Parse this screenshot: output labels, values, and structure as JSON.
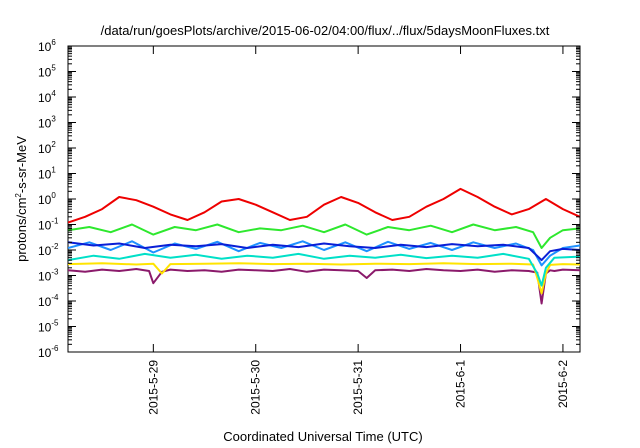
{
  "chart_data": {
    "type": "line",
    "title": "/data/run/goesPlots/archive/2015-06-02/04:00/flux/../flux/5daysMoonFluxes.txt",
    "xlabel": "Coordinated Universal Time (UTC)",
    "ylabel": {
      "before": "protons/cm",
      "sup": "2",
      "after": "-s-sr-MeV"
    },
    "y_scale": "log",
    "ylim": [
      1e-06,
      1000000.0
    ],
    "y_ticks": [
      {
        "value": 1e-06,
        "base": "10",
        "exp": "-6"
      },
      {
        "value": 1e-05,
        "base": "10",
        "exp": "-5"
      },
      {
        "value": 0.0001,
        "base": "10",
        "exp": "-4"
      },
      {
        "value": 0.001,
        "base": "10",
        "exp": "-3"
      },
      {
        "value": 0.01,
        "base": "10",
        "exp": "-2"
      },
      {
        "value": 0.1,
        "base": "10",
        "exp": "-1"
      },
      {
        "value": 1,
        "base": "10",
        "exp": "0"
      },
      {
        "value": 10,
        "base": "10",
        "exp": "1"
      },
      {
        "value": 100,
        "base": "10",
        "exp": "2"
      },
      {
        "value": 1000,
        "base": "10",
        "exp": "3"
      },
      {
        "value": 10000,
        "base": "10",
        "exp": "4"
      },
      {
        "value": 100000,
        "base": "10",
        "exp": "5"
      },
      {
        "value": 1000000,
        "base": "10",
        "exp": "6"
      }
    ],
    "xlim": [
      "2015-05-28T04:00",
      "2015-06-02T04:00"
    ],
    "x_ticks": [
      {
        "value": "2015-05-29T00:00",
        "label": "2015-5-29"
      },
      {
        "value": "2015-05-30T00:00",
        "label": "2015-5-30"
      },
      {
        "value": "2015-05-31T00:00",
        "label": "2015-5-31"
      },
      {
        "value": "2015-06-01T00:00",
        "label": "2015-6-1"
      },
      {
        "value": "2015-06-02T00:00",
        "label": "2015-6-2"
      }
    ],
    "grid": false,
    "legend": "none",
    "series": [
      {
        "color": "#8b1a6b",
        "x": [
          "2015-05-28T04:00",
          "2015-05-28T08:00",
          "2015-05-28T12:00",
          "2015-05-28T16:00",
          "2015-05-28T20:00",
          "2015-05-28T23:00",
          "2015-05-29T00:00",
          "2015-05-29T02:00",
          "2015-05-29T04:00",
          "2015-05-29T08:00",
          "2015-05-29T12:00",
          "2015-05-29T16:00",
          "2015-05-29T20:00",
          "2015-05-30T00:00",
          "2015-05-30T04:00",
          "2015-05-30T08:00",
          "2015-05-30T12:00",
          "2015-05-30T16:00",
          "2015-05-30T20:00",
          "2015-05-31T00:00",
          "2015-05-31T02:00",
          "2015-05-31T04:00",
          "2015-05-31T08:00",
          "2015-05-31T12:00",
          "2015-05-31T16:00",
          "2015-05-31T20:00",
          "2015-06-01T00:00",
          "2015-06-01T04:00",
          "2015-06-01T08:00",
          "2015-06-01T12:00",
          "2015-06-01T16:00",
          "2015-06-01T18:00",
          "2015-06-01T19:00",
          "2015-06-01T20:00",
          "2015-06-01T21:00",
          "2015-06-01T22:00",
          "2015-06-02T00:00",
          "2015-06-02T04:00"
        ],
        "y": [
          0.0016,
          0.0014,
          0.0017,
          0.0015,
          0.0018,
          0.0015,
          0.0005,
          0.0014,
          0.0017,
          0.0015,
          0.0016,
          0.0014,
          0.0017,
          0.0016,
          0.0015,
          0.0018,
          0.0014,
          0.0017,
          0.0016,
          0.0015,
          0.0008,
          0.0016,
          0.0017,
          0.0015,
          0.0018,
          0.0016,
          0.0015,
          0.0017,
          0.0014,
          0.0016,
          0.0015,
          0.0013,
          8e-05,
          0.0012,
          0.0016,
          0.0015,
          0.0017,
          0.0016
        ]
      },
      {
        "color": "#ffe400",
        "x": [
          "2015-05-28T04:00",
          "2015-05-28T12:00",
          "2015-05-28T20:00",
          "2015-05-29T00:00",
          "2015-05-29T02:00",
          "2015-05-29T04:00",
          "2015-05-29T12:00",
          "2015-05-29T20:00",
          "2015-05-30T04:00",
          "2015-05-30T12:00",
          "2015-05-30T20:00",
          "2015-05-31T04:00",
          "2015-05-31T12:00",
          "2015-05-31T20:00",
          "2015-06-01T04:00",
          "2015-06-01T12:00",
          "2015-06-01T17:00",
          "2015-06-01T18:00",
          "2015-06-01T19:00",
          "2015-06-01T20:00",
          "2015-06-01T21:00",
          "2015-06-02T00:00",
          "2015-06-02T04:00"
        ],
        "y": [
          0.0028,
          0.003,
          0.0027,
          0.0029,
          0.0012,
          0.0028,
          0.0029,
          0.003,
          0.0028,
          0.0029,
          0.0027,
          0.0029,
          0.0028,
          0.003,
          0.0028,
          0.0029,
          0.0027,
          0.0008,
          0.0002,
          0.0012,
          0.0026,
          0.0028,
          0.0027
        ]
      },
      {
        "color": "#00e0c8",
        "x": [
          "2015-05-28T04:00",
          "2015-05-28T10:00",
          "2015-05-28T16:00",
          "2015-05-28T22:00",
          "2015-05-29T04:00",
          "2015-05-29T10:00",
          "2015-05-29T16:00",
          "2015-05-29T22:00",
          "2015-05-30T04:00",
          "2015-05-30T10:00",
          "2015-05-30T16:00",
          "2015-05-30T22:00",
          "2015-05-31T04:00",
          "2015-05-31T10:00",
          "2015-05-31T16:00",
          "2015-05-31T22:00",
          "2015-06-01T04:00",
          "2015-06-01T10:00",
          "2015-06-01T16:00",
          "2015-06-01T18:00",
          "2015-06-01T19:00",
          "2015-06-01T20:00",
          "2015-06-01T22:00",
          "2015-06-02T04:00"
        ],
        "y": [
          0.004,
          0.006,
          0.0045,
          0.007,
          0.005,
          0.0065,
          0.0045,
          0.006,
          0.005,
          0.007,
          0.0045,
          0.006,
          0.005,
          0.0065,
          0.0048,
          0.006,
          0.005,
          0.007,
          0.0045,
          0.0012,
          0.0004,
          0.002,
          0.005,
          0.0055
        ]
      },
      {
        "color": "#1e90ff",
        "x": [
          "2015-05-28T04:00",
          "2015-05-28T09:00",
          "2015-05-28T14:00",
          "2015-05-28T19:00",
          "2015-05-29T00:00",
          "2015-05-29T05:00",
          "2015-05-29T10:00",
          "2015-05-29T15:00",
          "2015-05-29T20:00",
          "2015-05-30T01:00",
          "2015-05-30T06:00",
          "2015-05-30T11:00",
          "2015-05-30T16:00",
          "2015-05-30T21:00",
          "2015-05-31T02:00",
          "2015-05-31T07:00",
          "2015-05-31T12:00",
          "2015-05-31T17:00",
          "2015-05-31T22:00",
          "2015-06-01T03:00",
          "2015-06-01T08:00",
          "2015-06-01T13:00",
          "2015-06-01T17:00",
          "2015-06-01T19:00",
          "2015-06-01T21:00",
          "2015-06-02T00:00",
          "2015-06-02T04:00"
        ],
        "y": [
          0.012,
          0.02,
          0.01,
          0.022,
          0.008,
          0.018,
          0.011,
          0.021,
          0.009,
          0.019,
          0.012,
          0.022,
          0.01,
          0.02,
          0.009,
          0.021,
          0.011,
          0.019,
          0.01,
          0.02,
          0.012,
          0.018,
          0.01,
          0.0025,
          0.006,
          0.012,
          0.015
        ]
      },
      {
        "color": "#0a1fd6",
        "x": [
          "2015-05-28T04:00",
          "2015-05-28T10:00",
          "2015-05-28T16:00",
          "2015-05-28T22:00",
          "2015-05-29T04:00",
          "2015-05-29T10:00",
          "2015-05-29T16:00",
          "2015-05-29T22:00",
          "2015-05-30T04:00",
          "2015-05-30T10:00",
          "2015-05-30T16:00",
          "2015-05-30T22:00",
          "2015-05-31T04:00",
          "2015-05-31T10:00",
          "2015-05-31T16:00",
          "2015-05-31T22:00",
          "2015-06-01T04:00",
          "2015-06-01T10:00",
          "2015-06-01T16:00",
          "2015-06-01T19:00",
          "2015-06-01T21:00",
          "2015-06-02T00:00",
          "2015-06-02T04:00"
        ],
        "y": [
          0.02,
          0.015,
          0.018,
          0.012,
          0.016,
          0.014,
          0.017,
          0.012,
          0.016,
          0.013,
          0.018,
          0.014,
          0.012,
          0.016,
          0.013,
          0.017,
          0.014,
          0.016,
          0.012,
          0.004,
          0.009,
          0.011,
          0.01
        ]
      },
      {
        "color": "#2ee82e",
        "x": [
          "2015-05-28T04:00",
          "2015-05-28T09:00",
          "2015-05-28T14:00",
          "2015-05-28T19:00",
          "2015-05-29T00:00",
          "2015-05-29T05:00",
          "2015-05-29T10:00",
          "2015-05-29T15:00",
          "2015-05-29T20:00",
          "2015-05-30T01:00",
          "2015-05-30T06:00",
          "2015-05-30T11:00",
          "2015-05-30T16:00",
          "2015-05-30T21:00",
          "2015-05-31T02:00",
          "2015-05-31T07:00",
          "2015-05-31T12:00",
          "2015-05-31T17:00",
          "2015-05-31T22:00",
          "2015-06-01T03:00",
          "2015-06-01T08:00",
          "2015-06-01T13:00",
          "2015-06-01T17:00",
          "2015-06-01T19:00",
          "2015-06-01T21:00",
          "2015-06-02T00:00",
          "2015-06-02T04:00"
        ],
        "y": [
          0.06,
          0.08,
          0.05,
          0.1,
          0.04,
          0.08,
          0.06,
          0.1,
          0.05,
          0.07,
          0.06,
          0.09,
          0.05,
          0.1,
          0.04,
          0.08,
          0.06,
          0.09,
          0.05,
          0.1,
          0.06,
          0.08,
          0.05,
          0.012,
          0.03,
          0.06,
          0.07
        ]
      },
      {
        "color": "#ee0000",
        "x": [
          "2015-05-28T04:00",
          "2015-05-28T08:00",
          "2015-05-28T12:00",
          "2015-05-28T16:00",
          "2015-05-28T20:00",
          "2015-05-29T00:00",
          "2015-05-29T04:00",
          "2015-05-29T08:00",
          "2015-05-29T12:00",
          "2015-05-29T16:00",
          "2015-05-29T20:00",
          "2015-05-30T00:00",
          "2015-05-30T04:00",
          "2015-05-30T08:00",
          "2015-05-30T12:00",
          "2015-05-30T16:00",
          "2015-05-30T20:00",
          "2015-05-31T00:00",
          "2015-05-31T04:00",
          "2015-05-31T08:00",
          "2015-05-31T12:00",
          "2015-05-31T16:00",
          "2015-05-31T20:00",
          "2015-06-01T00:00",
          "2015-06-01T04:00",
          "2015-06-01T08:00",
          "2015-06-01T12:00",
          "2015-06-01T16:00",
          "2015-06-01T20:00",
          "2015-06-02T00:00",
          "2015-06-02T04:00"
        ],
        "y": [
          0.12,
          0.2,
          0.4,
          1.2,
          0.9,
          0.5,
          0.25,
          0.15,
          0.3,
          0.8,
          1.0,
          0.6,
          0.3,
          0.15,
          0.2,
          0.6,
          1.2,
          0.7,
          0.3,
          0.15,
          0.2,
          0.5,
          1.0,
          2.5,
          1.2,
          0.5,
          0.25,
          0.4,
          1.0,
          0.4,
          0.2
        ]
      }
    ]
  }
}
